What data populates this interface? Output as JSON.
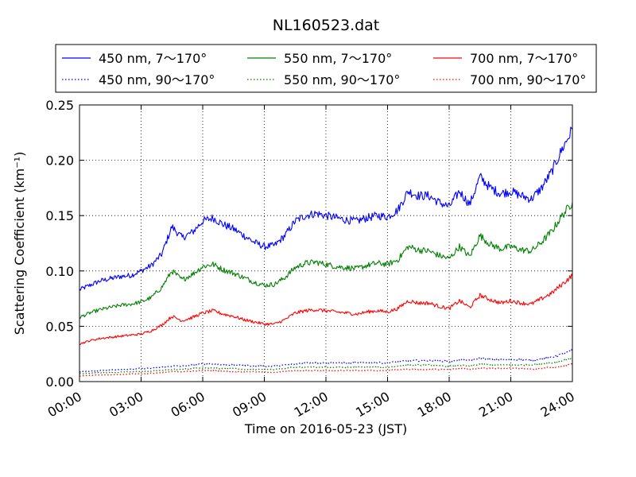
{
  "chart_data": {
    "type": "line",
    "title": "NL160523.dat",
    "xlabel": "Time on 2016-05-23 (JST)",
    "ylabel": "Scattering Coefficient (km⁻¹)",
    "xlim": [
      0,
      24
    ],
    "ylim": [
      0,
      0.25
    ],
    "grid": true,
    "legend_position": "top",
    "x_ticks": [
      0,
      3,
      6,
      9,
      12,
      15,
      18,
      21,
      24
    ],
    "x_tick_labels": [
      "00:00",
      "03:00",
      "06:00",
      "09:00",
      "12:00",
      "15:00",
      "18:00",
      "21:00",
      "24:00"
    ],
    "y_ticks": [
      0,
      0.05,
      0.1,
      0.15,
      0.2,
      0.25
    ],
    "y_tick_labels": [
      "0.00",
      "0.05",
      "0.10",
      "0.15",
      "0.20",
      "0.25"
    ],
    "x": [
      0,
      0.5,
      1,
      1.5,
      2,
      2.5,
      3,
      3.5,
      4,
      4.5,
      5,
      5.5,
      6,
      6.5,
      7,
      7.5,
      8,
      8.5,
      9,
      9.5,
      10,
      10.5,
      11,
      11.5,
      12,
      12.5,
      13,
      13.5,
      14,
      14.5,
      15,
      15.5,
      16,
      16.5,
      17,
      17.5,
      18,
      18.5,
      19,
      19.5,
      20,
      20.5,
      21,
      21.5,
      22,
      22.5,
      23,
      23.5,
      24
    ],
    "series": [
      {
        "name": "450 nm, 7～170°",
        "color": "#0000ff",
        "style": "solid",
        "values": [
          0.083,
          0.087,
          0.091,
          0.093,
          0.095,
          0.096,
          0.1,
          0.105,
          0.115,
          0.14,
          0.13,
          0.135,
          0.145,
          0.148,
          0.142,
          0.138,
          0.132,
          0.126,
          0.122,
          0.123,
          0.132,
          0.145,
          0.15,
          0.152,
          0.15,
          0.148,
          0.146,
          0.145,
          0.148,
          0.15,
          0.149,
          0.155,
          0.172,
          0.168,
          0.168,
          0.162,
          0.158,
          0.172,
          0.16,
          0.185,
          0.175,
          0.17,
          0.172,
          0.168,
          0.165,
          0.175,
          0.19,
          0.21,
          0.228
        ]
      },
      {
        "name": "550 nm, 7～170°",
        "color": "#008000",
        "style": "solid",
        "values": [
          0.058,
          0.062,
          0.065,
          0.067,
          0.069,
          0.07,
          0.072,
          0.076,
          0.085,
          0.1,
          0.092,
          0.097,
          0.104,
          0.106,
          0.101,
          0.098,
          0.094,
          0.09,
          0.087,
          0.088,
          0.094,
          0.103,
          0.107,
          0.108,
          0.106,
          0.104,
          0.103,
          0.102,
          0.105,
          0.107,
          0.106,
          0.11,
          0.122,
          0.119,
          0.118,
          0.114,
          0.111,
          0.122,
          0.113,
          0.132,
          0.124,
          0.12,
          0.122,
          0.119,
          0.118,
          0.126,
          0.136,
          0.15,
          0.162
        ]
      },
      {
        "name": "700 nm, 7～170°",
        "color": "#ff0000",
        "style": "solid",
        "values": [
          0.034,
          0.037,
          0.039,
          0.04,
          0.041,
          0.042,
          0.043,
          0.046,
          0.051,
          0.059,
          0.055,
          0.058,
          0.062,
          0.064,
          0.061,
          0.059,
          0.056,
          0.054,
          0.052,
          0.052,
          0.056,
          0.062,
          0.064,
          0.065,
          0.064,
          0.063,
          0.062,
          0.061,
          0.063,
          0.064,
          0.063,
          0.066,
          0.073,
          0.071,
          0.071,
          0.068,
          0.066,
          0.073,
          0.067,
          0.078,
          0.074,
          0.071,
          0.073,
          0.071,
          0.07,
          0.075,
          0.08,
          0.088,
          0.096
        ]
      },
      {
        "name": "450 nm, 90～170°",
        "color": "#0000ff",
        "style": "dotted",
        "values": [
          0.009,
          0.0095,
          0.01,
          0.0105,
          0.011,
          0.011,
          0.012,
          0.012,
          0.013,
          0.014,
          0.014,
          0.015,
          0.016,
          0.016,
          0.015,
          0.015,
          0.015,
          0.014,
          0.014,
          0.014,
          0.015,
          0.016,
          0.017,
          0.017,
          0.017,
          0.017,
          0.017,
          0.017,
          0.017,
          0.017,
          0.017,
          0.018,
          0.019,
          0.019,
          0.019,
          0.019,
          0.018,
          0.02,
          0.019,
          0.021,
          0.02,
          0.02,
          0.02,
          0.02,
          0.019,
          0.021,
          0.022,
          0.025,
          0.028
        ]
      },
      {
        "name": "550 nm, 90～170°",
        "color": "#008000",
        "style": "dotted",
        "values": [
          0.007,
          0.0075,
          0.008,
          0.008,
          0.0085,
          0.009,
          0.009,
          0.0095,
          0.01,
          0.011,
          0.011,
          0.012,
          0.012,
          0.012,
          0.012,
          0.012,
          0.011,
          0.011,
          0.011,
          0.011,
          0.012,
          0.013,
          0.013,
          0.013,
          0.013,
          0.013,
          0.013,
          0.013,
          0.013,
          0.013,
          0.013,
          0.014,
          0.015,
          0.015,
          0.015,
          0.014,
          0.014,
          0.015,
          0.014,
          0.016,
          0.015,
          0.015,
          0.015,
          0.015,
          0.015,
          0.016,
          0.017,
          0.019,
          0.021
        ]
      },
      {
        "name": "700 nm, 90～170°",
        "color": "#ff0000",
        "style": "dotted",
        "values": [
          0.005,
          0.0055,
          0.006,
          0.006,
          0.0065,
          0.007,
          0.007,
          0.0075,
          0.008,
          0.009,
          0.009,
          0.0095,
          0.01,
          0.01,
          0.0095,
          0.009,
          0.009,
          0.009,
          0.0085,
          0.0085,
          0.009,
          0.01,
          0.01,
          0.01,
          0.01,
          0.01,
          0.01,
          0.01,
          0.01,
          0.01,
          0.01,
          0.011,
          0.011,
          0.011,
          0.011,
          0.011,
          0.011,
          0.012,
          0.011,
          0.012,
          0.012,
          0.012,
          0.012,
          0.012,
          0.011,
          0.012,
          0.013,
          0.014,
          0.016
        ]
      }
    ]
  }
}
